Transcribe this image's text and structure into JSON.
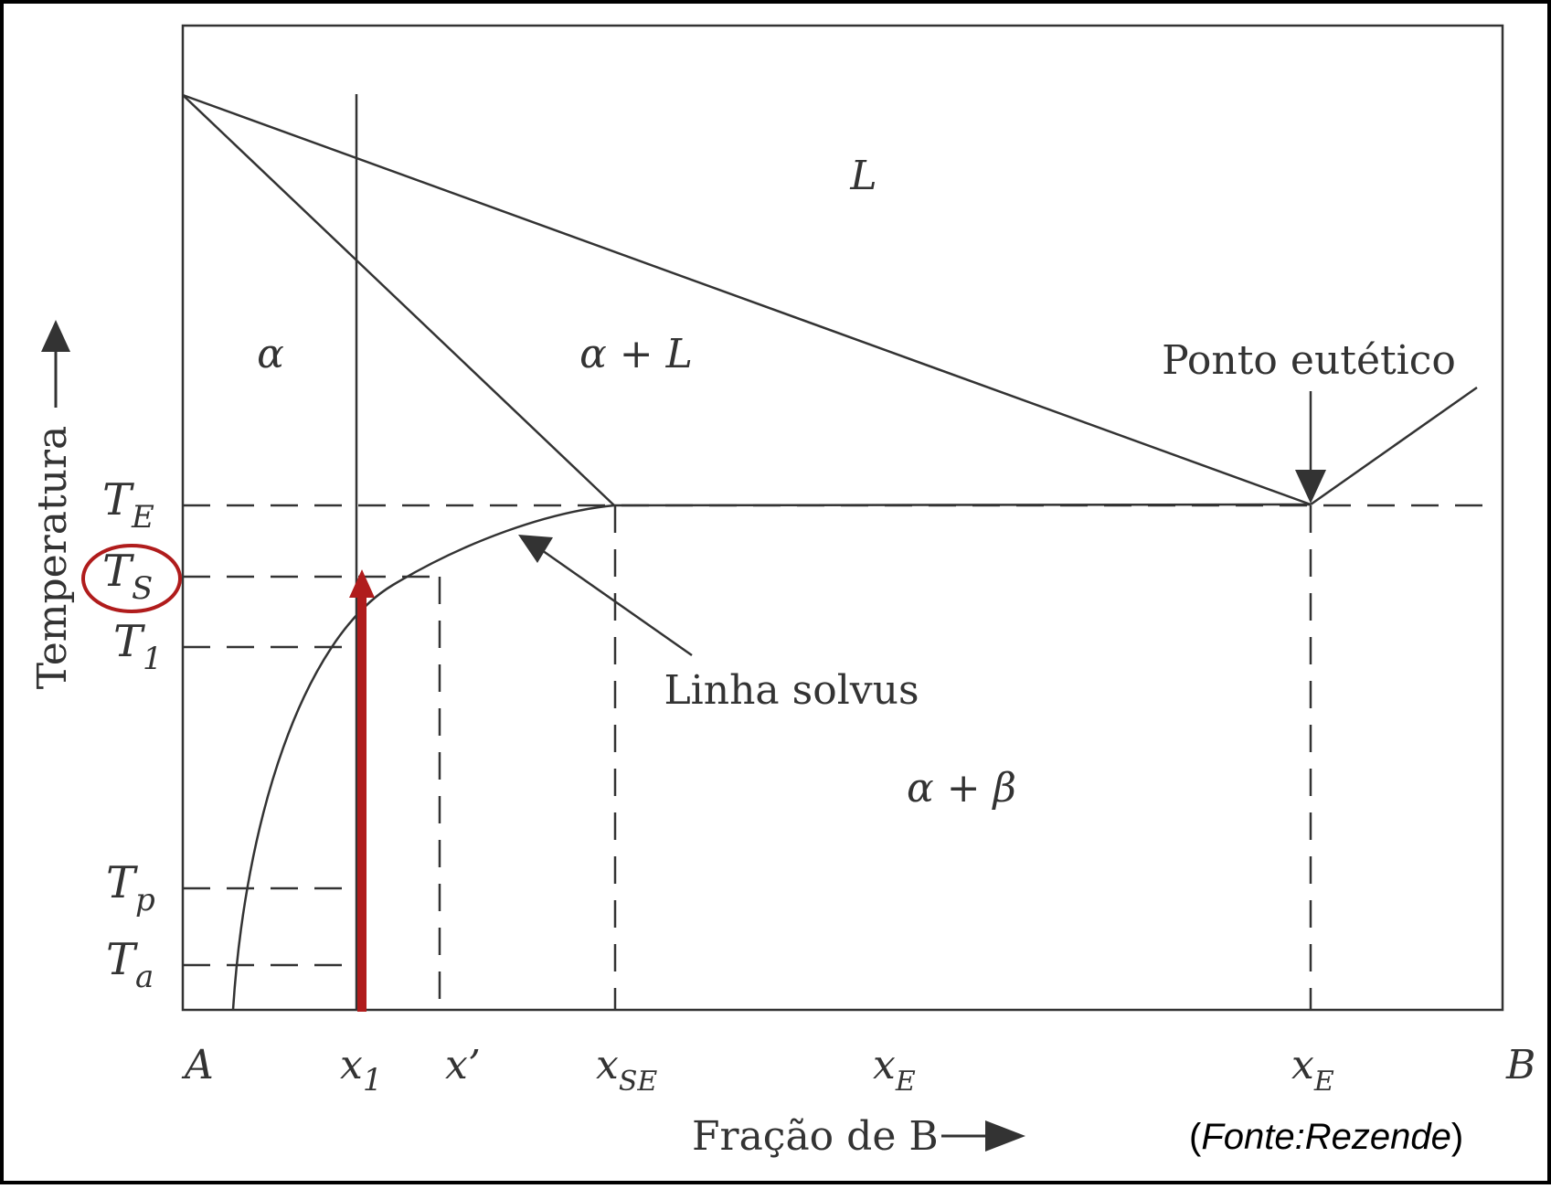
{
  "diagram": {
    "phase_labels": {
      "liquid": "L",
      "alpha": "α",
      "alpha_liquid": "α + L",
      "alpha_beta": "α + β"
    },
    "annotations": {
      "eutectic_point": "Ponto eutético",
      "solvus_line": "Linha solvus"
    },
    "axis": {
      "y_label": "Temperatura",
      "x_label": "Fração de B"
    },
    "temperature_ticks": [
      {
        "base": "T",
        "sub": "E"
      },
      {
        "base": "T",
        "sub": "S"
      },
      {
        "base": "T",
        "sub": "1"
      },
      {
        "base": "T",
        "sub": "p"
      },
      {
        "base": "T",
        "sub": "a"
      }
    ],
    "composition_ticks": [
      {
        "base": "A",
        "sub": ""
      },
      {
        "base": "x",
        "sub": "1"
      },
      {
        "base": "x’",
        "sub": ""
      },
      {
        "base": "x",
        "sub": "SE"
      },
      {
        "base": "x",
        "sub": "E"
      },
      {
        "base": "x",
        "sub": "E"
      },
      {
        "base": "B",
        "sub": ""
      }
    ],
    "source": {
      "open": "(",
      "text": "Fonte:Rezende",
      "close": ")"
    },
    "colors": {
      "ink": "#333333",
      "highlight": "#b01c1c",
      "frame": "#000000"
    }
  }
}
